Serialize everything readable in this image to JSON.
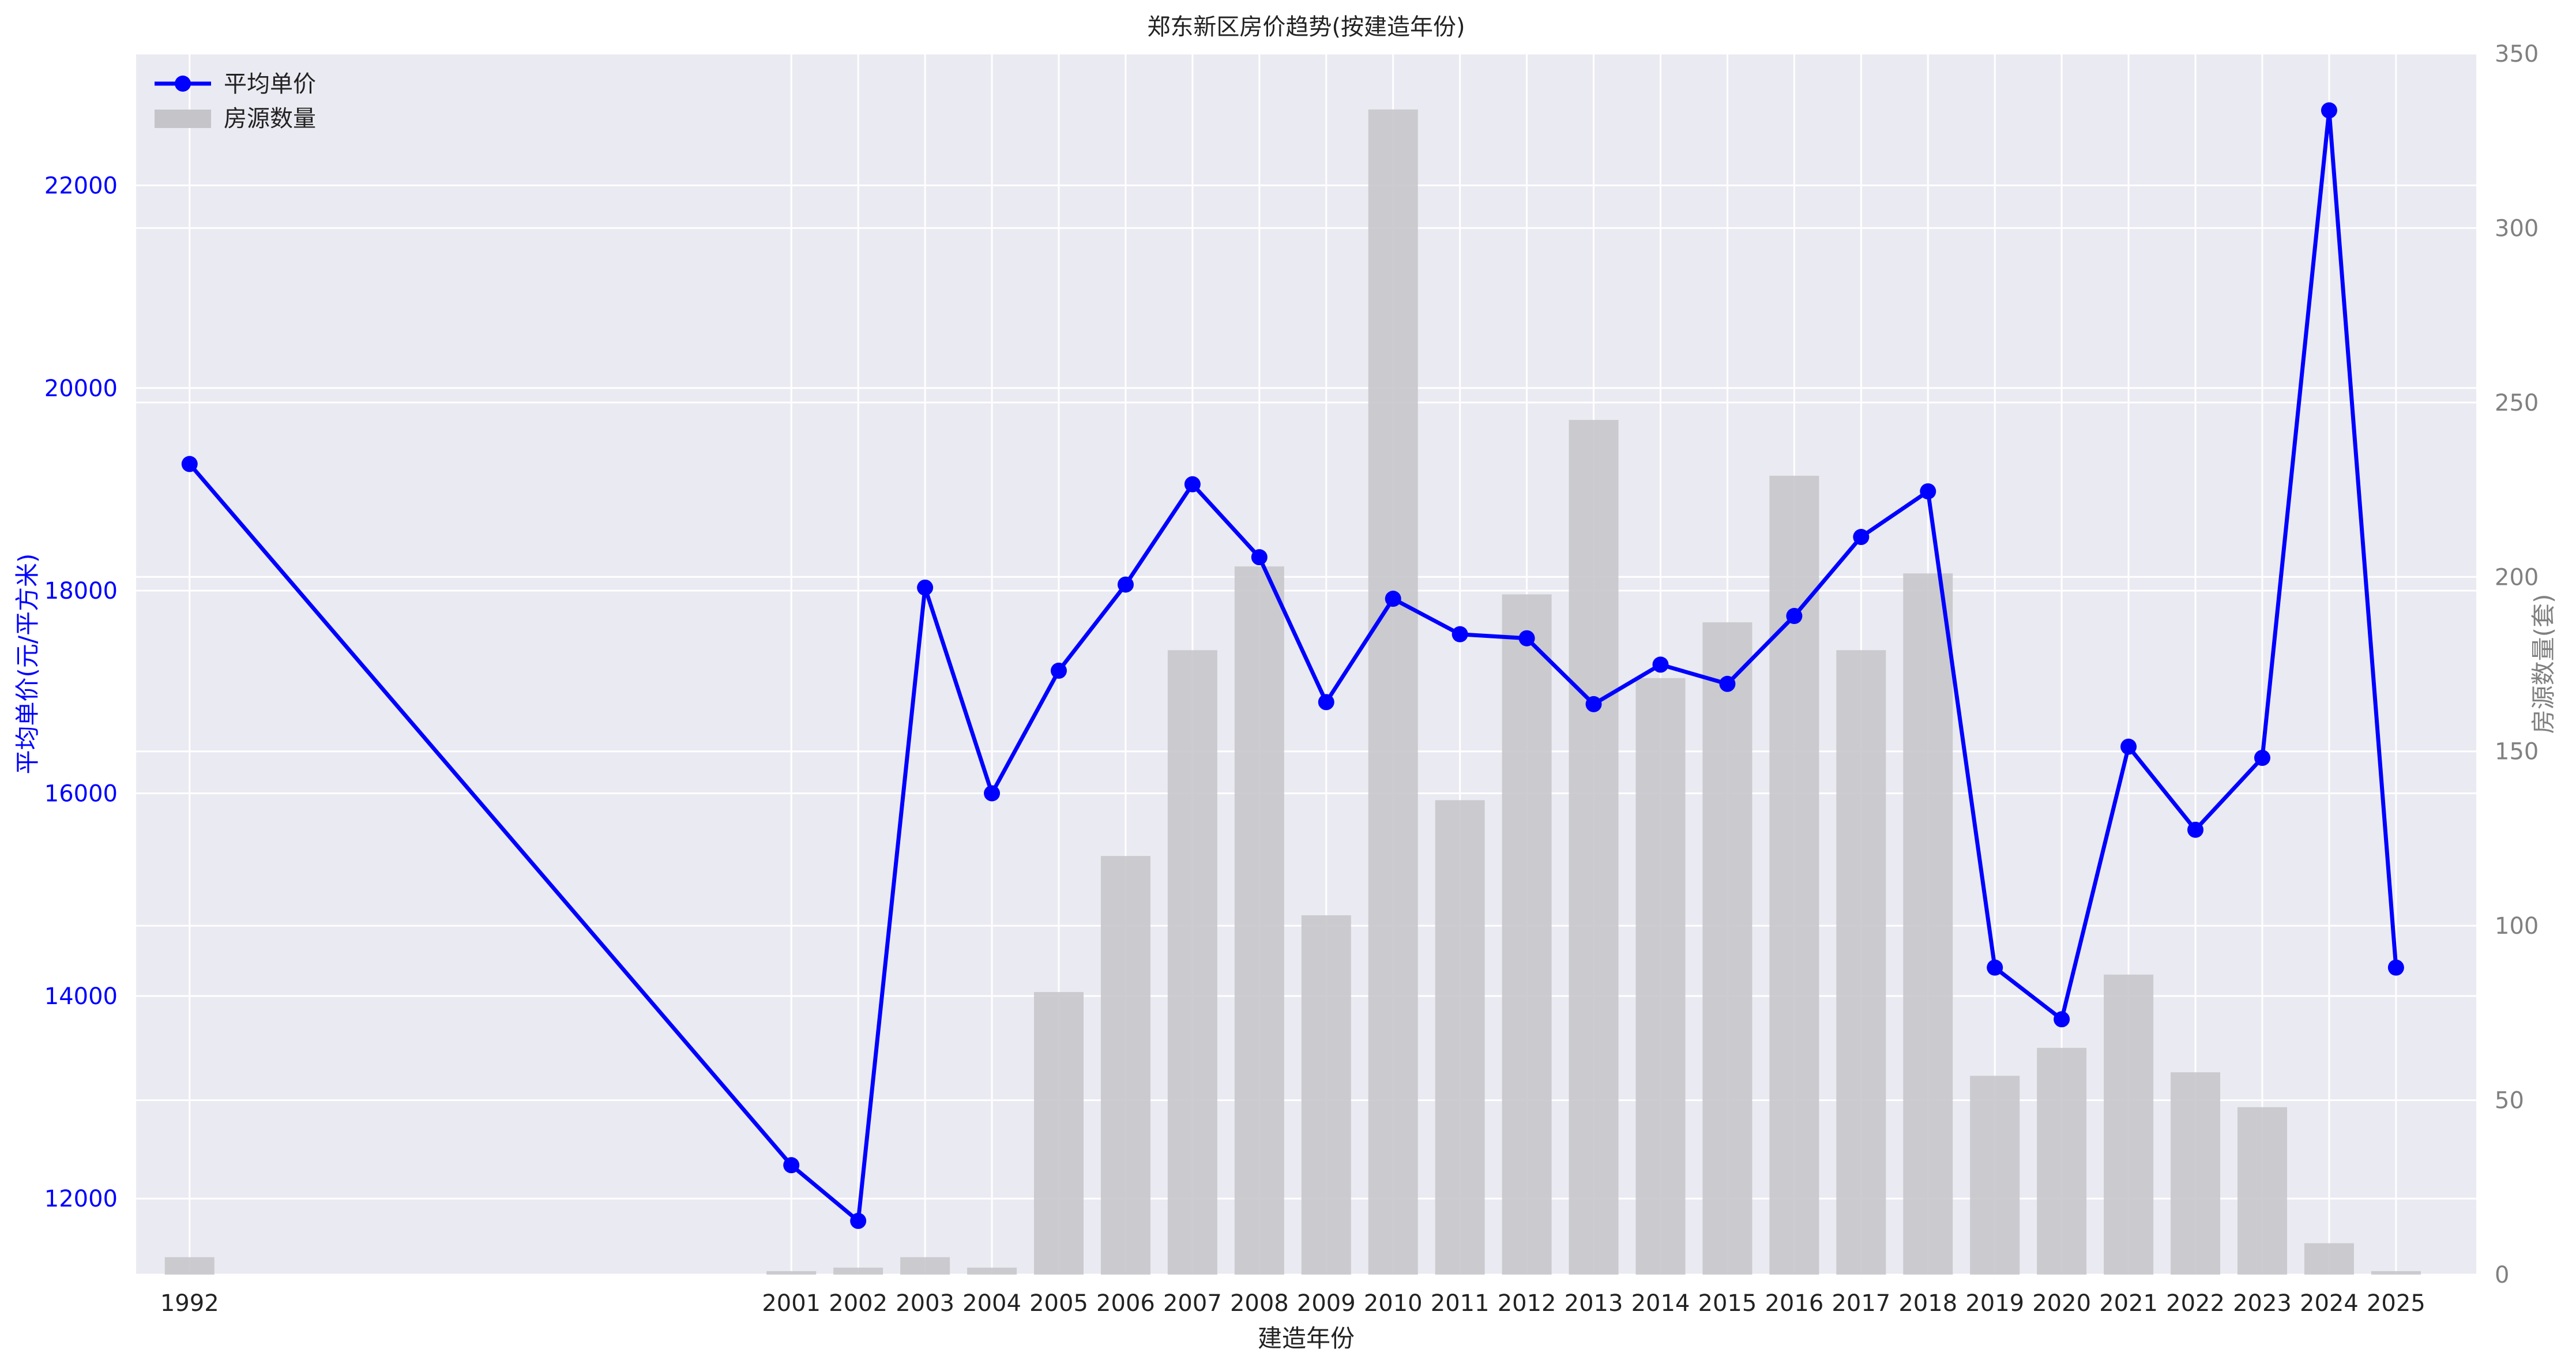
{
  "chart_data": {
    "type": "line+bar",
    "title": "郑东新区房价趋势(按建造年份)",
    "xlabel": "建造年份",
    "ylabel_left": "平均单价(元/平方米)",
    "ylabel_right": "房源数量(套)",
    "x": [
      1992,
      2001,
      2002,
      2003,
      2004,
      2005,
      2006,
      2007,
      2008,
      2009,
      2010,
      2011,
      2012,
      2013,
      2014,
      2015,
      2016,
      2017,
      2018,
      2019,
      2020,
      2021,
      2022,
      2023,
      2024,
      2025
    ],
    "series": [
      {
        "name": "平均单价",
        "type": "line",
        "axis": "left",
        "color": "#0000ff",
        "values": [
          19250,
          12330,
          11780,
          18030,
          16000,
          17210,
          18060,
          19050,
          18330,
          16900,
          17920,
          17570,
          17530,
          16880,
          17270,
          17080,
          17750,
          18530,
          18980,
          14280,
          13770,
          16460,
          15640,
          16350,
          22740,
          14280
        ]
      },
      {
        "name": "房源数量",
        "type": "bar",
        "axis": "right",
        "color": "#c4c4c9",
        "values": [
          5,
          1,
          2,
          5,
          2,
          81,
          120,
          179,
          203,
          103,
          334,
          136,
          195,
          245,
          171,
          187,
          229,
          179,
          201,
          57,
          65,
          86,
          58,
          48,
          9,
          1
        ]
      }
    ],
    "y_left": {
      "min": 11250,
      "max": 23300,
      "ticks": [
        12000,
        14000,
        16000,
        18000,
        20000,
        22000
      ],
      "color": "#0000ff"
    },
    "y_right": {
      "min": 0,
      "max": 350,
      "ticks": [
        0,
        50,
        100,
        150,
        200,
        250,
        300,
        350
      ],
      "color": "#808080"
    },
    "x_range": [
      1991.2,
      2026.2
    ],
    "grid": true,
    "legend_position": "top-left",
    "background": "#eaeaf2"
  }
}
